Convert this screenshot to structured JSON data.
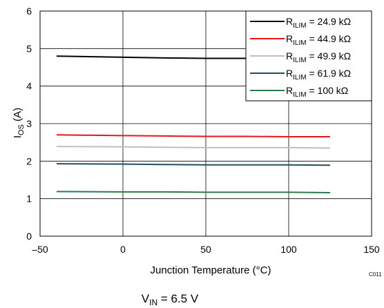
{
  "chart_data": {
    "type": "line",
    "title": "",
    "xlabel": "Junction Temperature (°C)",
    "ylabel": {
      "main": "I",
      "sub": "OS",
      "unit": " (A)"
    },
    "xlim": [
      -50,
      150
    ],
    "ylim": [
      0,
      6
    ],
    "xticks": [
      "–50",
      "0",
      "50",
      "100",
      "150"
    ],
    "xtick_values": [
      -50,
      0,
      50,
      100,
      150
    ],
    "yticks": [
      "0",
      "1",
      "2",
      "3",
      "4",
      "5",
      "6"
    ],
    "ytick_values": [
      0,
      1,
      2,
      3,
      4,
      5,
      6
    ],
    "grid": true,
    "legend_position": "top-right",
    "x": [
      -40,
      0,
      25,
      50,
      75,
      100,
      125
    ],
    "series": [
      {
        "label_main": "R",
        "label_sub": "ILIM",
        "label_rest": " = 24.9 kΩ",
        "color": "#000000",
        "values": [
          4.8,
          4.77,
          4.75,
          4.74,
          4.74,
          4.74,
          4.74
        ]
      },
      {
        "label_main": "R",
        "label_sub": "ILIM",
        "label_rest": " = 44.9 kΩ",
        "color": "#e8141b",
        "values": [
          2.7,
          2.68,
          2.67,
          2.66,
          2.66,
          2.65,
          2.65
        ]
      },
      {
        "label_main": "R",
        "label_sub": "ILIM",
        "label_rest": " = 49.9 kΩ",
        "color": "#bfbfbf",
        "values": [
          2.39,
          2.38,
          2.37,
          2.36,
          2.36,
          2.36,
          2.35
        ]
      },
      {
        "label_main": "R",
        "label_sub": "ILIM",
        "label_rest": " = 61.9 kΩ",
        "color": "#1f4e5e",
        "values": [
          1.93,
          1.92,
          1.91,
          1.9,
          1.9,
          1.9,
          1.89
        ]
      },
      {
        "label_main": "R",
        "label_sub": "ILIM",
        "label_rest": " = 100 kΩ",
        "color": "#2a7a4b",
        "values": [
          1.19,
          1.18,
          1.18,
          1.17,
          1.17,
          1.17,
          1.16
        ]
      }
    ]
  },
  "figure_code": "C011",
  "caption": {
    "main": "V",
    "sub": "IN",
    "rest": " = 6.5 V"
  }
}
